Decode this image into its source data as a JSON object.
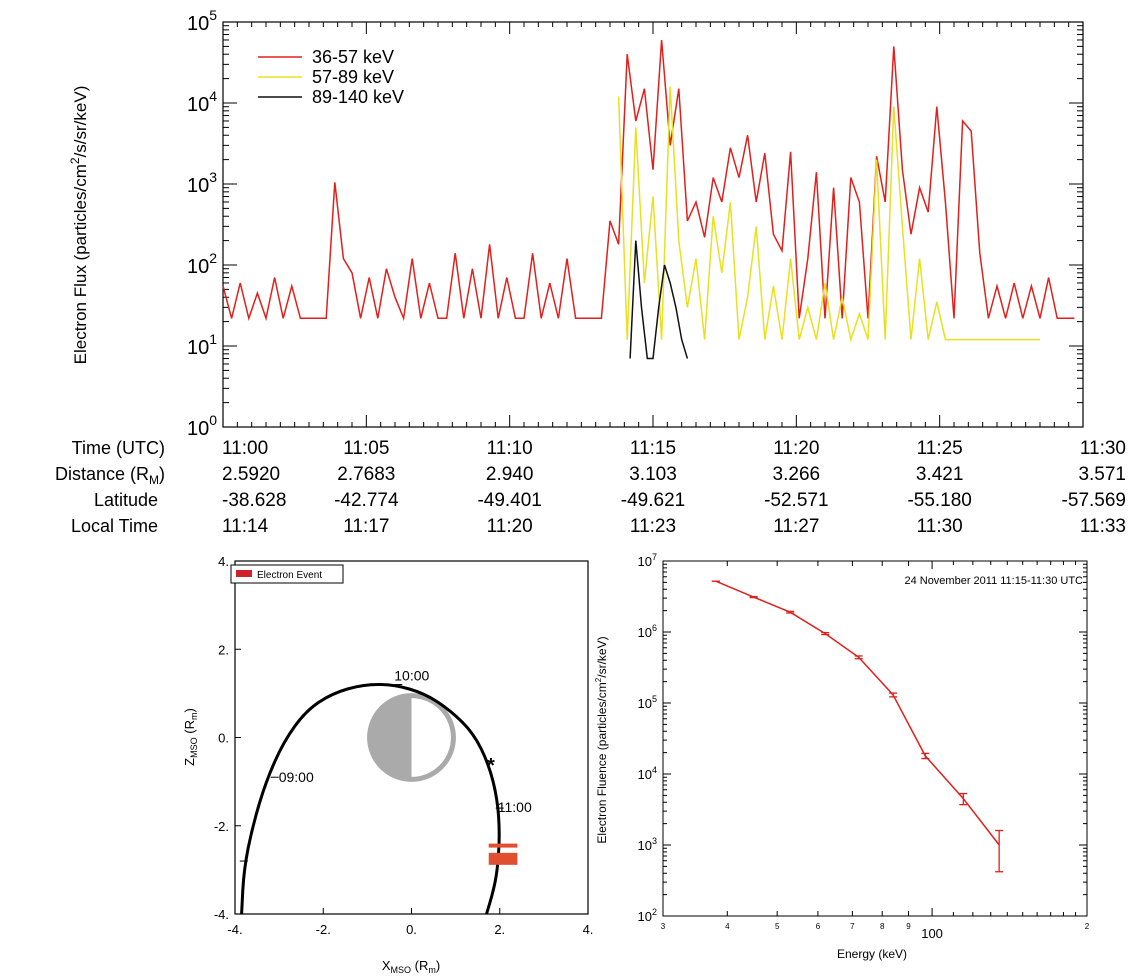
{
  "chart_data": [
    {
      "type": "line",
      "ylabel_main": "Electron Flux (particles/cm",
      "ylabel_sup": "2",
      "ylabel_tail": "/s/sr/keV)",
      "yscale": "log",
      "ylim": [
        1,
        100000
      ],
      "ytick_exponents": [
        "0",
        "1",
        "2",
        "3",
        "4",
        "5"
      ],
      "ytick_base": "10",
      "xlim": [
        0,
        30
      ],
      "xtick_minutes": [
        0,
        5,
        10,
        15,
        20,
        25,
        30
      ],
      "grid": false,
      "legend": {
        "placement": "top-left",
        "entries": [
          {
            "label": "36-57 keV",
            "color": "#e0201c"
          },
          {
            "label": "57-89 keV",
            "color": "#e8e020"
          },
          {
            "label": "89-140 keV",
            "color": "#111111"
          }
        ]
      },
      "series": [
        {
          "name": "36-57 keV",
          "color": "#e0201c",
          "x": [
            0.0,
            0.3,
            0.6,
            0.9,
            1.2,
            1.5,
            1.8,
            2.1,
            2.4,
            2.7,
            3.0,
            3.3,
            3.6,
            3.9,
            4.2,
            4.5,
            4.8,
            5.1,
            5.4,
            5.7,
            6.0,
            6.3,
            6.6,
            6.9,
            7.2,
            7.5,
            7.8,
            8.1,
            8.4,
            8.7,
            9.0,
            9.3,
            9.6,
            9.9,
            10.2,
            10.5,
            10.8,
            11.1,
            11.4,
            11.7,
            12.0,
            12.3,
            12.6,
            12.9,
            13.2,
            13.5,
            13.8,
            14.1,
            14.4,
            14.7,
            15.0,
            15.3,
            15.6,
            15.9,
            16.2,
            16.5,
            16.8,
            17.1,
            17.4,
            17.7,
            18.0,
            18.3,
            18.6,
            18.9,
            19.2,
            19.5,
            19.8,
            20.1,
            20.4,
            20.7,
            21.0,
            21.3,
            21.6,
            21.9,
            22.2,
            22.5,
            22.8,
            23.1,
            23.4,
            23.7,
            24.0,
            24.3,
            24.6,
            24.9,
            25.2,
            25.5,
            25.8,
            26.1,
            26.4,
            26.7,
            27.0,
            27.3,
            27.6,
            27.9,
            28.2,
            28.5,
            28.8,
            29.1,
            29.4,
            29.7
          ],
          "y": [
            55,
            22,
            60,
            22,
            45,
            22,
            70,
            22,
            55,
            22,
            22,
            22,
            22,
            1050,
            120,
            80,
            22,
            70,
            22,
            90,
            40,
            22,
            120,
            22,
            60,
            22,
            22,
            140,
            22,
            90,
            22,
            180,
            22,
            70,
            22,
            22,
            140,
            22,
            60,
            22,
            120,
            22,
            22,
            22,
            22,
            350,
            180,
            40000,
            6000,
            15000,
            1500,
            60000,
            3000,
            15000,
            350,
            600,
            220,
            1200,
            600,
            2800,
            1200,
            4000,
            600,
            2400,
            240,
            150,
            2500,
            22,
            120,
            1400,
            22,
            900,
            22,
            1200,
            600,
            22,
            2200,
            600,
            50000,
            1500,
            240,
            900,
            450,
            9000,
            600,
            22,
            6000,
            4500,
            140,
            22,
            55,
            22,
            60,
            22,
            55,
            22,
            70,
            22,
            22,
            22
          ]
        },
        {
          "name": "57-89 keV",
          "color": "#e8e020",
          "x": [
            13.8,
            14.1,
            14.4,
            14.7,
            15.0,
            15.3,
            15.6,
            15.9,
            16.2,
            16.5,
            16.8,
            17.1,
            17.4,
            17.7,
            18.0,
            18.3,
            18.6,
            18.9,
            19.2,
            19.5,
            19.8,
            20.1,
            20.4,
            20.7,
            21.0,
            21.3,
            21.6,
            21.9,
            22.2,
            22.5,
            22.8,
            23.1,
            23.4,
            23.7,
            24.0,
            24.3,
            24.6,
            24.9,
            25.2,
            25.5,
            25.8,
            26.1,
            26.4,
            26.7,
            27.0,
            27.3,
            27.6,
            27.9,
            28.2,
            28.5
          ],
          "y": [
            12000,
            12,
            5000,
            60,
            700,
            12,
            16000,
            200,
            30,
            120,
            12,
            400,
            80,
            600,
            12,
            40,
            300,
            12,
            55,
            12,
            120,
            12,
            30,
            12,
            60,
            12,
            40,
            12,
            25,
            12,
            2000,
            12,
            9000,
            300,
            12,
            120,
            12,
            35,
            12,
            12,
            12,
            12,
            12,
            12,
            12,
            12,
            12,
            12,
            12,
            12
          ]
        },
        {
          "name": "89-140 keV",
          "color": "#111111",
          "x": [
            14.2,
            14.4,
            14.6,
            14.8,
            15.0,
            15.2,
            15.4,
            15.6,
            15.8,
            16.0,
            16.2
          ],
          "y": [
            7,
            200,
            30,
            7,
            7,
            30,
            100,
            60,
            30,
            12,
            7
          ]
        }
      ]
    },
    {
      "type": "table",
      "rows": [
        {
          "label": "Time (UTC)",
          "values": [
            "11:00",
            "11:05",
            "11:10",
            "11:15",
            "11:20",
            "11:25",
            "11:30"
          ]
        },
        {
          "label_main": "Distance (R",
          "label_sub": "M",
          "label_tail": ")",
          "values": [
            "2.5920",
            "2.7683",
            "2.940",
            "3.103",
            "3.266",
            "3.421",
            "3.571"
          ]
        },
        {
          "label": "Latitude",
          "values": [
            "-38.628",
            "-42.774",
            "-49.401",
            "-49.621",
            "-52.571",
            "-55.180",
            "-57.569"
          ]
        },
        {
          "label": "Local Time",
          "values": [
            "11:14",
            "11:17",
            "11:20",
            "11:23",
            "11:27",
            "11:30",
            "11:33"
          ]
        }
      ]
    },
    {
      "type": "line",
      "xlim": [
        -4,
        4
      ],
      "ylim": [
        -4,
        4
      ],
      "xticks": [
        "-4.",
        "-2.",
        "0.",
        "2.",
        "4."
      ],
      "yticks": [
        "4.",
        "2.",
        "0.",
        "-2.",
        "-4."
      ],
      "xlabel_main": "X",
      "xlabel_sub": "MSO",
      "xlabel_tail": " (R",
      "xlabel_sub2": "m",
      "xlabel_end": ")",
      "ylabel_main": "Z",
      "ylabel_sub": "MSO",
      "ylabel_tail": " (R",
      "ylabel_sub2": "m",
      "ylabel_end": ")",
      "legend": {
        "placement": "top-left",
        "label": "Electron Event",
        "color": "#d0202a"
      },
      "orbit": {
        "x": [
          -3.85,
          -3.8,
          -3.6,
          -3.3,
          -2.9,
          -2.4,
          -1.8,
          -1.1,
          -0.4,
          0.3,
          0.9,
          1.4,
          1.75,
          1.95,
          2.0,
          1.95,
          1.85,
          1.7
        ],
        "z": [
          -4.0,
          -3.0,
          -2.0,
          -1.0,
          -0.1,
          0.6,
          1.0,
          1.2,
          1.2,
          1.0,
          0.6,
          0.1,
          -0.6,
          -1.4,
          -2.2,
          -3.0,
          -3.5,
          -4.0
        ]
      },
      "time_labels": [
        {
          "label": "10:00",
          "x": -0.3,
          "z": 1.2
        },
        {
          "label": "09:00",
          "x": -3.1,
          "z": -0.9
        },
        {
          "label": "11:00",
          "x": 2.0,
          "z": -1.6
        }
      ],
      "event_z": [
        -2.45,
        -2.75
      ],
      "event_color": "#e05030",
      "planet_radius": 1.0,
      "spacecraft_marker": {
        "x": 1.8,
        "z": -0.6
      }
    },
    {
      "type": "line",
      "title": "24 November 2011 11:15-11:30 UTC",
      "xlabel": "Energy (keV)",
      "ylabel_main": "Electron Fluence (particles/cm",
      "ylabel_sup": "2",
      "ylabel_tail": "/sr/keV)",
      "xscale": "log",
      "yscale": "log",
      "xlim": [
        30,
        200
      ],
      "ylim": [
        100,
        10000000
      ],
      "xtick_labels": [
        {
          "value": 30,
          "label": "3"
        },
        {
          "value": 40,
          "label": "4"
        },
        {
          "value": 50,
          "label": "5"
        },
        {
          "value": 60,
          "label": "6"
        },
        {
          "value": 70,
          "label": "7"
        },
        {
          "value": 80,
          "label": "8"
        },
        {
          "value": 90,
          "label": "9"
        },
        {
          "value": 100,
          "label": "100"
        },
        {
          "value": 200,
          "label": "2"
        }
      ],
      "ytick_exponents": [
        "2",
        "3",
        "4",
        "5",
        "6",
        "7"
      ],
      "ytick_base": "10",
      "color": "#e0201c",
      "series": [
        {
          "energy": [
            38,
            45,
            53,
            62,
            72,
            84,
            97,
            115,
            135
          ],
          "fluence": [
            5200000,
            3100000,
            1900000,
            950000,
            440000,
            130000,
            18000,
            4500,
            1000
          ],
          "err_lo": [
            5200000,
            3050000,
            1850000,
            920000,
            420000,
            122000,
            16500,
            3700,
            420
          ],
          "err_hi": [
            5200000,
            3150000,
            1950000,
            980000,
            460000,
            138000,
            19500,
            5300,
            1600
          ]
        }
      ]
    }
  ]
}
